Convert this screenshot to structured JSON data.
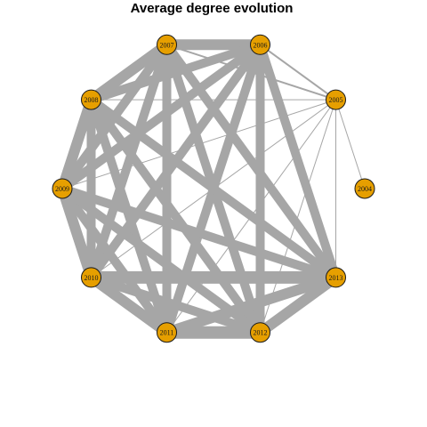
{
  "title": "Average degree evolution",
  "colors": {
    "background": "#ffffff",
    "edge": "#a6a6a6",
    "node_fill": "#e69f00",
    "node_stroke": "#1a1a1a"
  },
  "graph": {
    "nodes": [
      {
        "id": "2004",
        "label": "2004"
      },
      {
        "id": "2005",
        "label": "2005"
      },
      {
        "id": "2006",
        "label": "2006"
      },
      {
        "id": "2007",
        "label": "2007"
      },
      {
        "id": "2008",
        "label": "2008"
      },
      {
        "id": "2009",
        "label": "2009"
      },
      {
        "id": "2010",
        "label": "2010"
      },
      {
        "id": "2011",
        "label": "2011"
      },
      {
        "id": "2012",
        "label": "2012"
      },
      {
        "id": "2013",
        "label": "2013"
      }
    ],
    "edges": [
      {
        "source": "2004",
        "target": "2005",
        "weight": 1
      },
      {
        "source": "2005",
        "target": "2006",
        "weight": 2
      },
      {
        "source": "2005",
        "target": "2007",
        "weight": 2
      },
      {
        "source": "2005",
        "target": "2008",
        "weight": 1
      },
      {
        "source": "2005",
        "target": "2009",
        "weight": 1
      },
      {
        "source": "2005",
        "target": "2010",
        "weight": 1
      },
      {
        "source": "2005",
        "target": "2011",
        "weight": 1
      },
      {
        "source": "2005",
        "target": "2012",
        "weight": 1
      },
      {
        "source": "2005",
        "target": "2013",
        "weight": 1
      },
      {
        "source": "2006",
        "target": "2007",
        "weight": 12
      },
      {
        "source": "2006",
        "target": "2008",
        "weight": 10
      },
      {
        "source": "2006",
        "target": "2009",
        "weight": 10
      },
      {
        "source": "2006",
        "target": "2010",
        "weight": 10
      },
      {
        "source": "2006",
        "target": "2011",
        "weight": 10
      },
      {
        "source": "2006",
        "target": "2012",
        "weight": 10
      },
      {
        "source": "2006",
        "target": "2013",
        "weight": 10
      },
      {
        "source": "2007",
        "target": "2008",
        "weight": 12
      },
      {
        "source": "2007",
        "target": "2009",
        "weight": 10
      },
      {
        "source": "2007",
        "target": "2010",
        "weight": 10
      },
      {
        "source": "2007",
        "target": "2011",
        "weight": 10
      },
      {
        "source": "2007",
        "target": "2012",
        "weight": 10
      },
      {
        "source": "2007",
        "target": "2013",
        "weight": 10
      },
      {
        "source": "2008",
        "target": "2009",
        "weight": 12
      },
      {
        "source": "2008",
        "target": "2010",
        "weight": 10
      },
      {
        "source": "2008",
        "target": "2011",
        "weight": 10
      },
      {
        "source": "2008",
        "target": "2012",
        "weight": 10
      },
      {
        "source": "2008",
        "target": "2013",
        "weight": 10
      },
      {
        "source": "2009",
        "target": "2010",
        "weight": 12
      },
      {
        "source": "2009",
        "target": "2011",
        "weight": 10
      },
      {
        "source": "2009",
        "target": "2012",
        "weight": 10
      },
      {
        "source": "2009",
        "target": "2013",
        "weight": 10
      },
      {
        "source": "2010",
        "target": "2011",
        "weight": 12
      },
      {
        "source": "2010",
        "target": "2012",
        "weight": 10
      },
      {
        "source": "2010",
        "target": "2013",
        "weight": 14
      },
      {
        "source": "2011",
        "target": "2012",
        "weight": 14
      },
      {
        "source": "2011",
        "target": "2013",
        "weight": 12
      },
      {
        "source": "2012",
        "target": "2013",
        "weight": 12
      }
    ]
  }
}
